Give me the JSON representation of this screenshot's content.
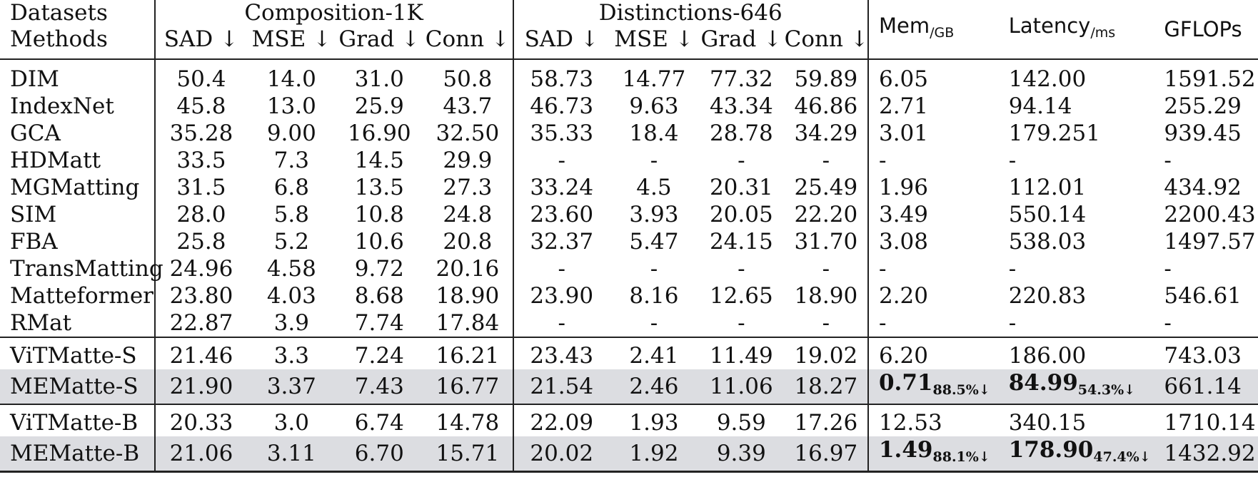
{
  "header": {
    "datasets_label": "Datasets",
    "methods_label": "Methods",
    "group1": "Composition-1K",
    "group2": "Distinctions-646",
    "metrics": [
      "SAD ↓",
      "MSE ↓",
      "Grad ↓",
      "Conn ↓"
    ],
    "mem": "Mem",
    "mem_unit": "/GB",
    "latency": "Latency",
    "latency_unit": "/ms",
    "gflops": "GFLOPs"
  },
  "rows": [
    {
      "method": "DIM",
      "c1k": [
        "50.4",
        "14.0",
        "31.0",
        "50.8"
      ],
      "d646": [
        "58.73",
        "14.77",
        "77.32",
        "59.89"
      ],
      "mem": "6.05",
      "latency": "142.00",
      "gflops": "1591.52"
    },
    {
      "method": "IndexNet",
      "c1k": [
        "45.8",
        "13.0",
        "25.9",
        "43.7"
      ],
      "d646": [
        "46.73",
        "9.63",
        "43.34",
        "46.86"
      ],
      "mem": "2.71",
      "latency": "94.14",
      "gflops": "255.29"
    },
    {
      "method": "GCA",
      "c1k": [
        "35.28",
        "9.00",
        "16.90",
        "32.50"
      ],
      "d646": [
        "35.33",
        "18.4",
        "28.78",
        "34.29"
      ],
      "mem": "3.01",
      "latency": "179.251",
      "gflops": "939.45"
    },
    {
      "method": "HDMatt",
      "c1k": [
        "33.5",
        "7.3",
        "14.5",
        "29.9"
      ],
      "d646": [
        "-",
        "-",
        "-",
        "-"
      ],
      "mem": "-",
      "latency": "-",
      "gflops": "-"
    },
    {
      "method": "MGMatting",
      "c1k": [
        "31.5",
        "6.8",
        "13.5",
        "27.3"
      ],
      "d646": [
        "33.24",
        "4.5",
        "20.31",
        "25.49"
      ],
      "mem": "1.96",
      "latency": "112.01",
      "gflops": "434.92"
    },
    {
      "method": "SIM",
      "c1k": [
        "28.0",
        "5.8",
        "10.8",
        "24.8"
      ],
      "d646": [
        "23.60",
        "3.93",
        "20.05",
        "22.20"
      ],
      "mem": "3.49",
      "latency": "550.14",
      "gflops": "2200.43"
    },
    {
      "method": "FBA",
      "c1k": [
        "25.8",
        "5.2",
        "10.6",
        "20.8"
      ],
      "d646": [
        "32.37",
        "5.47",
        "24.15",
        "31.70"
      ],
      "mem": "3.08",
      "latency": "538.03",
      "gflops": "1497.57"
    },
    {
      "method": "TransMatting",
      "c1k": [
        "24.96",
        "4.58",
        "9.72",
        "20.16"
      ],
      "d646": [
        "-",
        "-",
        "-",
        "-"
      ],
      "mem": "-",
      "latency": "-",
      "gflops": "-"
    },
    {
      "method": "Matteformer",
      "c1k": [
        "23.80",
        "4.03",
        "8.68",
        "18.90"
      ],
      "d646": [
        "23.90",
        "8.16",
        "12.65",
        "18.90"
      ],
      "mem": "2.20",
      "latency": "220.83",
      "gflops": "546.61"
    },
    {
      "method": "RMat",
      "c1k": [
        "22.87",
        "3.9",
        "7.74",
        "17.84"
      ],
      "d646": [
        "-",
        "-",
        "-",
        "-"
      ],
      "mem": "-",
      "latency": "-",
      "gflops": "-"
    }
  ],
  "group_s": [
    {
      "method": "ViTMatte-S",
      "c1k": [
        "21.46",
        "3.3",
        "7.24",
        "16.21"
      ],
      "d646": [
        "23.43",
        "2.41",
        "11.49",
        "19.02"
      ],
      "mem": "6.20",
      "latency": "186.00",
      "gflops": "743.03"
    },
    {
      "method": "MEMatte-S",
      "c1k": [
        "21.90",
        "3.37",
        "7.43",
        "16.77"
      ],
      "d646": [
        "21.54",
        "2.46",
        "11.06",
        "18.27"
      ],
      "mem": "0.71",
      "mem_red": "88.5%↓",
      "latency": "84.99",
      "latency_red": "54.3%↓",
      "gflops": "661.14"
    }
  ],
  "group_b": [
    {
      "method": "ViTMatte-B",
      "c1k": [
        "20.33",
        "3.0",
        "6.74",
        "14.78"
      ],
      "d646": [
        "22.09",
        "1.93",
        "9.59",
        "17.26"
      ],
      "mem": "12.53",
      "latency": "340.15",
      "gflops": "1710.14"
    },
    {
      "method": "MEMatte-B",
      "c1k": [
        "21.06",
        "3.11",
        "6.70",
        "15.71"
      ],
      "d646": [
        "20.02",
        "1.92",
        "9.39",
        "16.97"
      ],
      "mem": "1.49",
      "mem_red": "88.1%↓",
      "latency": "178.90",
      "latency_red": "47.4%↓",
      "gflops": "1432.92"
    }
  ]
}
